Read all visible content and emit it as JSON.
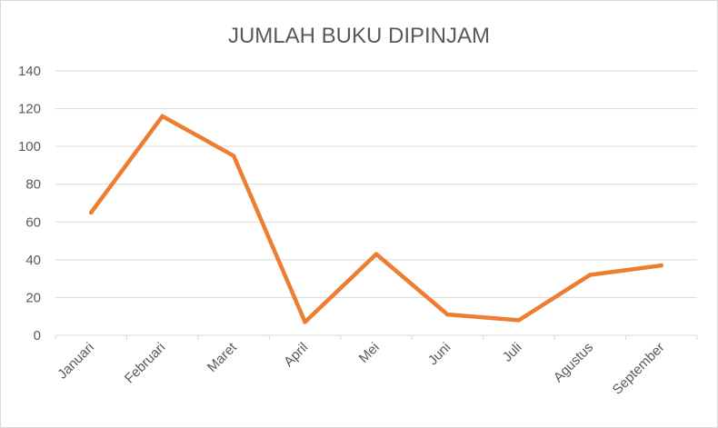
{
  "chart_data": {
    "type": "line",
    "title": "JUMLAH BUKU DIPINJAM",
    "categories": [
      "Januari",
      "Februari",
      "Maret",
      "April",
      "Mei",
      "Juni",
      "Juli",
      "Agustus",
      "September"
    ],
    "series": [
      {
        "values": [
          65,
          116,
          95,
          7,
          43,
          11,
          8,
          32,
          37
        ],
        "color": "#ed7d31"
      }
    ],
    "xlabel": "",
    "ylabel": "",
    "ylim": [
      0,
      140
    ],
    "yticks": [
      0,
      20,
      40,
      60,
      80,
      100,
      120,
      140
    ],
    "grid": true,
    "legend": "none",
    "colors": {
      "gridline": "#d9d9d9",
      "text": "#595959"
    }
  }
}
